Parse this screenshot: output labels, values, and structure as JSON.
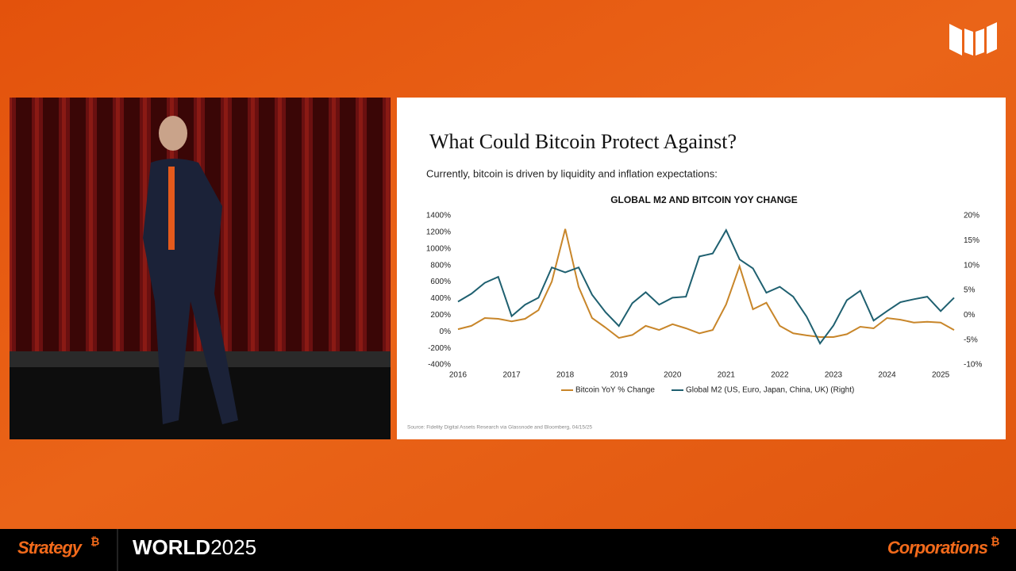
{
  "slide": {
    "title": "What Could Bitcoin Protect Against?",
    "subtitle": "Currently, bitcoin is driven by liquidity and inflation expectations:",
    "source": "Source: Fidelity Digital Assets Research via Glassnode and Bloomberg, 04/15/25"
  },
  "branding": {
    "left_brand": "Strategy",
    "brand_mark": "₿",
    "event_word": "WORLD",
    "event_year": "2025",
    "right_brand": "Corporations"
  },
  "chart_data": {
    "type": "line",
    "title": "GLOBAL M2 AND BITCOIN YOY CHANGE",
    "x": [
      2016,
      2016.25,
      2016.5,
      2016.75,
      2017,
      2017.25,
      2017.5,
      2017.75,
      2018,
      2018.25,
      2018.5,
      2018.75,
      2019,
      2019.25,
      2019.5,
      2019.75,
      2020,
      2020.25,
      2020.5,
      2020.75,
      2021,
      2021.25,
      2021.5,
      2021.75,
      2022,
      2022.25,
      2022.5,
      2022.75,
      2023,
      2023.25,
      2023.5,
      2023.75,
      2024,
      2024.25,
      2024.5,
      2024.75,
      2025,
      2025.25
    ],
    "xlim": [
      2016,
      2025.25
    ],
    "xticks": [
      2016,
      2017,
      2018,
      2019,
      2020,
      2021,
      2022,
      2023,
      2024,
      2025
    ],
    "ylim": [
      -400,
      1400
    ],
    "yticks": [
      {
        "value": -400,
        "label": "-400%"
      },
      {
        "value": -200,
        "label": "-200%"
      },
      {
        "value": 0,
        "label": "0%"
      },
      {
        "value": 200,
        "label": "200%"
      },
      {
        "value": 400,
        "label": "400%"
      },
      {
        "value": 600,
        "label": "600%"
      },
      {
        "value": 800,
        "label": "800%"
      },
      {
        "value": 1000,
        "label": "1000%"
      },
      {
        "value": 1200,
        "label": "1200%"
      },
      {
        "value": 1400,
        "label": "1400%"
      }
    ],
    "y2lim": [
      -10,
      20
    ],
    "y2ticks": [
      {
        "value": -10,
        "label": "-10%"
      },
      {
        "value": -5,
        "label": "-5%"
      },
      {
        "value": 0,
        "label": "0%"
      },
      {
        "value": 5,
        "label": "5%"
      },
      {
        "value": 10,
        "label": "10%"
      },
      {
        "value": 15,
        "label": "15%"
      },
      {
        "value": 20,
        "label": "20%"
      }
    ],
    "series": [
      {
        "name": "Bitcoin YoY % Change",
        "color": "#c8862a",
        "values": [
          30,
          70,
          165,
          155,
          125,
          155,
          260,
          605,
          1240,
          540,
          165,
          50,
          -75,
          -40,
          70,
          20,
          90,
          40,
          -20,
          20,
          330,
          790,
          270,
          350,
          70,
          -20,
          -45,
          -65,
          -65,
          -30,
          60,
          40,
          165,
          145,
          110,
          120,
          110,
          20
        ]
      },
      {
        "name": "Global M2 (US, Euro, Japan, China, UK) (Right)",
        "color": "#1f6070",
        "axis": "y2",
        "values": [
          2.7,
          4.3,
          6.5,
          7.7,
          -0.2,
          2.1,
          3.5,
          9.6,
          8.6,
          9.6,
          4.1,
          0.6,
          -2.2,
          2.4,
          4.6,
          2.1,
          3.5,
          3.7,
          11.8,
          12.4,
          17.1,
          11.2,
          9.4,
          4.5,
          5.7,
          3.7,
          -0.3,
          -5.7,
          -2.1,
          3.0,
          4.9,
          -1.1,
          0.8,
          2.6,
          3.2,
          3.7,
          0.8,
          3.5
        ]
      }
    ]
  }
}
